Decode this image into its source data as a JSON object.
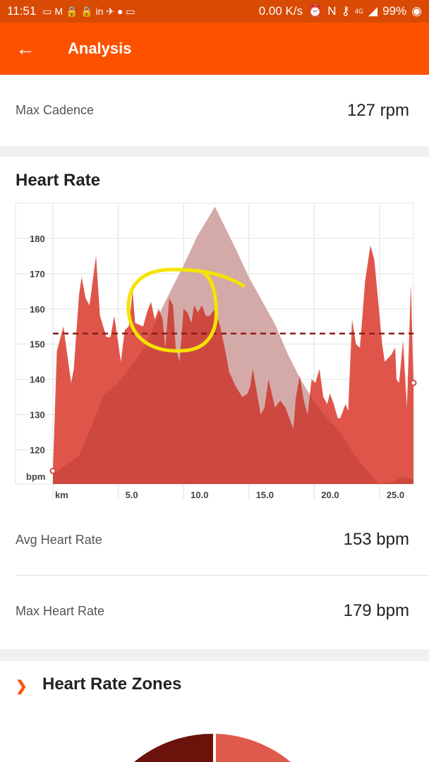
{
  "status_bar": {
    "time": "11:51",
    "net_speed": "0.00 K/s",
    "network": "4G",
    "battery": "99%",
    "icons": [
      "sim-icon",
      "gmail-icon",
      "lock-icon",
      "lock-icon",
      "linkedin-icon",
      "vpn-icon",
      "assistant-icon",
      "ge-icon",
      "alarm-icon",
      "nfc-icon",
      "key-icon",
      "signal-icon",
      "battery-icon"
    ]
  },
  "app_bar": {
    "title": "Analysis",
    "back_icon": "arrow-left-icon"
  },
  "cadence": {
    "label": "Max Cadence",
    "value": "127 rpm"
  },
  "heart_rate": {
    "title": "Heart Rate",
    "avg_label": "Avg Heart Rate",
    "avg_value": "153 bpm",
    "max_label": "Max Heart Rate",
    "max_value": "179 bpm"
  },
  "zones": {
    "title": "Heart Rate Zones",
    "icon": "chevron-right-icon"
  },
  "colors": {
    "brand": "#fc5200",
    "hr_fill": "#e0554a",
    "avg_line": "#8b1d1a",
    "elevation": "#ececec",
    "zone_dark": "#6b130b",
    "zone_light": "#e05a4c",
    "annotation": "#f5e400"
  },
  "chart_data": {
    "type": "area",
    "xlabel": "km",
    "ylabel": "bpm",
    "xlim": [
      0,
      27.6
    ],
    "ylim": [
      110.3,
      190
    ],
    "xticks": [
      "5.0",
      "10.0",
      "15.0",
      "20.0",
      "25.0"
    ],
    "yticks": [
      "120",
      "130",
      "140",
      "150",
      "160",
      "170",
      "180"
    ],
    "grid": true,
    "average": 153,
    "series": [
      {
        "role": "heart_rate",
        "points": [
          [
            0,
            114
          ],
          [
            0.3,
            148
          ],
          [
            0.8,
            155
          ],
          [
            1.4,
            139
          ],
          [
            1.6,
            143
          ],
          [
            2,
            164
          ],
          [
            2.2,
            169
          ],
          [
            2.5,
            163
          ],
          [
            2.8,
            161
          ],
          [
            3.3,
            175
          ],
          [
            3.6,
            158
          ],
          [
            4.1,
            152
          ],
          [
            4.4,
            152
          ],
          [
            4.7,
            158
          ],
          [
            5.2,
            145
          ],
          [
            5.5,
            154
          ],
          [
            5.8,
            155
          ],
          [
            6.1,
            165
          ],
          [
            6.3,
            156
          ],
          [
            6.9,
            155
          ],
          [
            7.2,
            159
          ],
          [
            7.5,
            162
          ],
          [
            7.8,
            157
          ],
          [
            8.1,
            160
          ],
          [
            8.4,
            157
          ],
          [
            8.6,
            149
          ],
          [
            8.9,
            163
          ],
          [
            9.2,
            161
          ],
          [
            9.4,
            149
          ],
          [
            9.7,
            145
          ],
          [
            10,
            160
          ],
          [
            10.3,
            159
          ],
          [
            10.6,
            156
          ],
          [
            10.8,
            161
          ],
          [
            11.1,
            159
          ],
          [
            11.4,
            161
          ],
          [
            11.7,
            158
          ],
          [
            12,
            158
          ],
          [
            12.4,
            160
          ],
          [
            12.8,
            155
          ],
          [
            13.2,
            148
          ],
          [
            13.5,
            142
          ],
          [
            14,
            138
          ],
          [
            14.5,
            135
          ],
          [
            14.9,
            136
          ],
          [
            15.1,
            138
          ],
          [
            15.3,
            143
          ],
          [
            15.9,
            130
          ],
          [
            16.2,
            132
          ],
          [
            16.5,
            140
          ],
          [
            17,
            132
          ],
          [
            17.4,
            134
          ],
          [
            17.8,
            132
          ],
          [
            18.4,
            126
          ],
          [
            18.6,
            135
          ],
          [
            18.9,
            141
          ],
          [
            19.2,
            134
          ],
          [
            19.5,
            130
          ],
          [
            19.8,
            140
          ],
          [
            20.1,
            139
          ],
          [
            20.4,
            143
          ],
          [
            20.7,
            135
          ],
          [
            21,
            133
          ],
          [
            21.2,
            136
          ],
          [
            21.5,
            133
          ],
          [
            21.8,
            129
          ],
          [
            22,
            129
          ],
          [
            22.4,
            133
          ],
          [
            22.6,
            131
          ],
          [
            22.9,
            157
          ],
          [
            23.2,
            150
          ],
          [
            23.5,
            149
          ],
          [
            23.9,
            168
          ],
          [
            24.3,
            178
          ],
          [
            24.6,
            174
          ],
          [
            25.2,
            150
          ],
          [
            25.4,
            145
          ],
          [
            25.9,
            147
          ],
          [
            26.2,
            149
          ],
          [
            26.3,
            140
          ],
          [
            26.5,
            139
          ],
          [
            26.8,
            151
          ],
          [
            27.1,
            132
          ],
          [
            27.4,
            167
          ],
          [
            27.6,
            139
          ]
        ]
      },
      {
        "role": "elevation",
        "points": [
          [
            0,
            113
          ],
          [
            1,
            115.7
          ],
          [
            2,
            118.3
          ],
          [
            3,
            127
          ],
          [
            3.9,
            135.7
          ],
          [
            5,
            139
          ],
          [
            6,
            143.7
          ],
          [
            7,
            149
          ],
          [
            8.2,
            159
          ],
          [
            9,
            165
          ],
          [
            10,
            172.3
          ],
          [
            11,
            180.3
          ],
          [
            12.4,
            189
          ],
          [
            14,
            177
          ],
          [
            15,
            169
          ],
          [
            16.2,
            161
          ],
          [
            17,
            155.7
          ],
          [
            18,
            147
          ],
          [
            19,
            139.7
          ],
          [
            20,
            133.7
          ],
          [
            21,
            129
          ],
          [
            22,
            125
          ],
          [
            23,
            119
          ],
          [
            24,
            114.3
          ],
          [
            25,
            110.3
          ],
          [
            26,
            111
          ],
          [
            26.8,
            112.3
          ],
          [
            27.6,
            111.7
          ]
        ]
      }
    ]
  }
}
